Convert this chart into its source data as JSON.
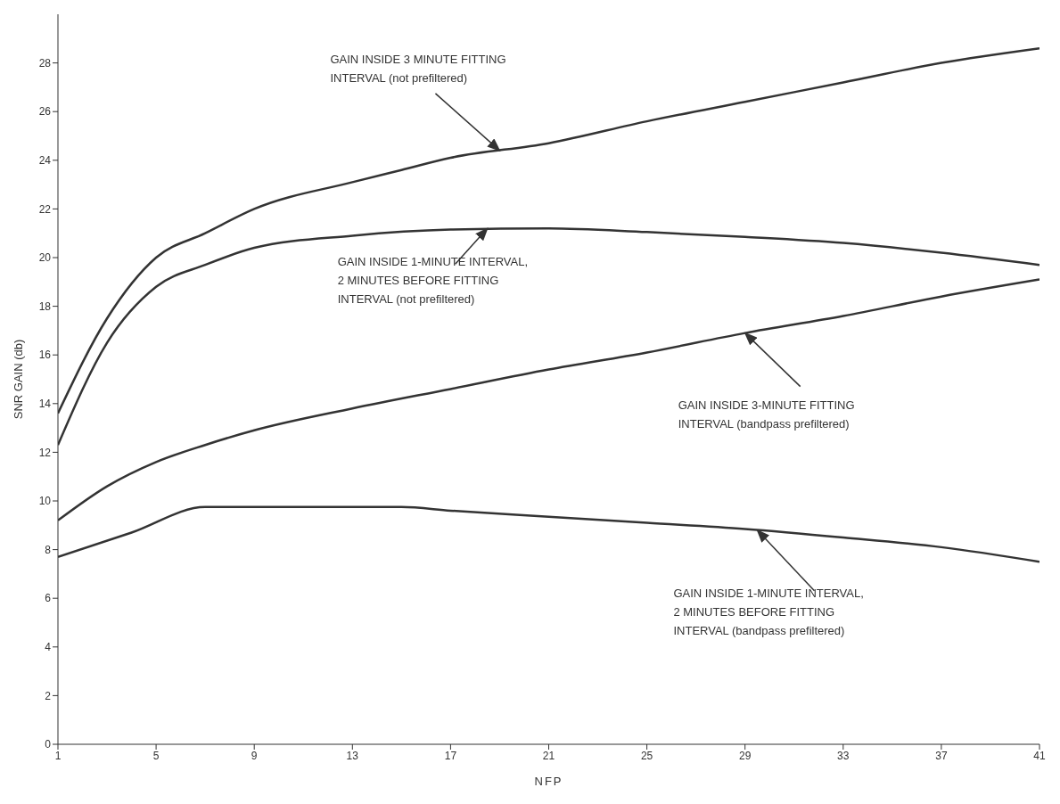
{
  "chart_data": {
    "type": "line",
    "xlabel": "NFP",
    "ylabel": "SNR GAIN (db)",
    "xlim": [
      1,
      41
    ],
    "xticks": [
      1,
      5,
      9,
      13,
      17,
      21,
      25,
      29,
      33,
      37,
      41
    ],
    "ylim": [
      0,
      30
    ],
    "yticks": [
      0,
      2,
      4,
      6,
      8,
      10,
      12,
      14,
      16,
      18,
      20,
      22,
      24,
      26,
      28
    ],
    "marker": "none",
    "line_style": "solid",
    "series": [
      {
        "color": "#333333",
        "x": [
          1,
          3,
          5,
          7,
          9,
          13,
          15,
          17,
          21,
          25,
          29,
          33,
          37,
          41
        ],
        "values": [
          13.6,
          17.5,
          20.0,
          21.0,
          22.0,
          23.1,
          23.6,
          24.1,
          24.7,
          25.6,
          26.4,
          27.2,
          28.0,
          28.6
        ]
      },
      {
        "color": "#333333",
        "x": [
          1,
          3,
          5,
          7,
          9,
          13,
          17,
          21,
          25,
          29,
          33,
          37,
          41
        ],
        "values": [
          12.3,
          16.5,
          18.8,
          19.7,
          20.4,
          20.9,
          21.15,
          21.2,
          21.05,
          20.85,
          20.6,
          20.2,
          19.7
        ]
      },
      {
        "color": "#333333",
        "x": [
          1,
          3,
          5,
          7,
          9,
          13,
          17,
          21,
          25,
          29,
          33,
          37,
          41
        ],
        "values": [
          9.2,
          10.6,
          11.6,
          12.3,
          12.9,
          13.8,
          14.6,
          15.4,
          16.1,
          16.9,
          17.6,
          18.4,
          19.1
        ]
      },
      {
        "color": "#333333",
        "x": [
          1,
          4,
          7,
          11,
          15,
          17,
          21,
          25,
          29,
          33,
          37,
          41
        ],
        "values": [
          7.7,
          8.7,
          9.75,
          9.75,
          9.75,
          9.6,
          9.35,
          9.1,
          8.85,
          8.5,
          8.1,
          7.5
        ]
      }
    ],
    "annotations": [
      {
        "text": "GAIN INSIDE 3 MINUTE FITTING\nINTERVAL (not prefiltered)",
        "x": 19,
        "y": 24.4
      },
      {
        "text": "GAIN INSIDE 1-MINUTE INTERVAL,\n2 MINUTES BEFORE FITTING\nINTERVAL (not prefiltered)",
        "x": 18.5,
        "y": 21.2
      },
      {
        "text": "GAIN INSIDE 3-MINUTE FITTING\nINTERVAL (bandpass prefiltered)",
        "x": 29,
        "y": 16.9
      },
      {
        "text": "GAIN INSIDE 1-MINUTE INTERVAL,\n2 MINUTES BEFORE FITTING\nINTERVAL (bandpass prefiltered)",
        "x": 29.5,
        "y": 8.8
      }
    ]
  }
}
